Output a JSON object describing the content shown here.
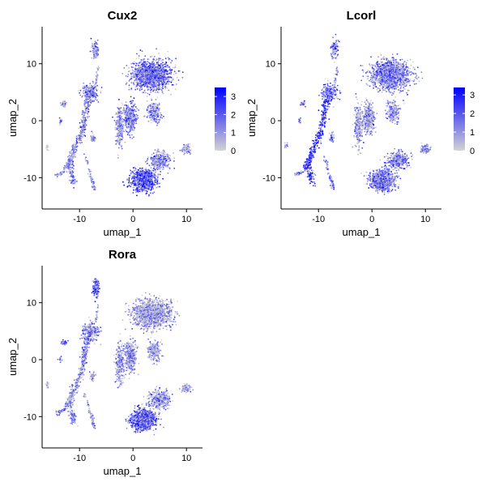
{
  "figure": {
    "low_color": "#d3d3d3",
    "high_color": "#0000ff",
    "point_color_note": "expression"
  },
  "chart_data": [
    {
      "type": "scatter",
      "title": "Cux2",
      "xlabel": "umap_1",
      "ylabel": "umap_2",
      "xlim": [
        -17,
        13
      ],
      "ylim": [
        -15.5,
        16.5
      ],
      "xticks": [
        -10,
        0,
        10
      ],
      "yticks": [
        -10,
        0,
        10
      ],
      "color_scale": {
        "min": 0,
        "max": 3.5,
        "ticks": [
          0,
          1,
          2,
          3
        ],
        "low": "#d3d3d3",
        "high": "#0000ff"
      },
      "clusters": [
        {
          "cx": 3.5,
          "cy": 8.0,
          "sx": 3.3,
          "sy": 2.2,
          "n": 1400,
          "mean": 1.9
        },
        {
          "cx": 2.0,
          "cy": -10.5,
          "sx": 2.0,
          "sy": 1.6,
          "n": 900,
          "mean": 2.2
        },
        {
          "cx": 5.0,
          "cy": -7.0,
          "sx": 1.8,
          "sy": 1.3,
          "n": 350,
          "mean": 1.3
        },
        {
          "cx": -0.5,
          "cy": 0.5,
          "sx": 1.0,
          "sy": 2.3,
          "n": 350,
          "mean": 1.7
        },
        {
          "cx": -2.5,
          "cy": -1.0,
          "sx": 0.7,
          "sy": 3.2,
          "n": 250,
          "mean": 1.2
        },
        {
          "cx": -7.0,
          "cy": 12.5,
          "sx": 0.6,
          "sy": 1.5,
          "n": 120,
          "mean": 1.3
        },
        {
          "cx": -8.0,
          "cy": 5.0,
          "sx": 1.4,
          "sy": 1.3,
          "n": 220,
          "mean": 1.6
        },
        {
          "cx": 4.0,
          "cy": 1.5,
          "sx": 1.2,
          "sy": 1.6,
          "n": 220,
          "mean": 1.3
        },
        {
          "cx": 10.0,
          "cy": -5.0,
          "sx": 0.8,
          "sy": 0.7,
          "n": 80,
          "mean": 0.8
        },
        {
          "cx": -13.0,
          "cy": 3.0,
          "sx": 0.5,
          "sy": 0.4,
          "n": 30,
          "mean": 1.2
        },
        {
          "cx": -13.5,
          "cy": 0.0,
          "sx": 0.3,
          "sy": 0.4,
          "n": 15,
          "mean": 2.0
        },
        {
          "cx": -7.5,
          "cy": -3.0,
          "sx": 0.4,
          "sy": 0.8,
          "n": 40,
          "mean": 1.0
        },
        {
          "cx": -16.0,
          "cy": -4.5,
          "sx": 0.3,
          "sy": 0.5,
          "n": 12,
          "mean": 0.2
        }
      ],
      "ribbons": [
        {
          "path": [
            [
              -11,
              -11
            ],
            [
              -12,
              -8
            ],
            [
              -11,
              -5
            ],
            [
              -9.5,
              -2
            ],
            [
              -9,
              1
            ],
            [
              -8.5,
              4
            ]
          ],
          "n": 380,
          "w": 0.7,
          "mean": 1.5
        },
        {
          "path": [
            [
              -14.5,
              -9.5
            ],
            [
              -13,
              -9
            ],
            [
              -12,
              -7
            ],
            [
              -11,
              -6
            ]
          ],
          "n": 80,
          "w": 0.4,
          "mean": 0.9
        },
        {
          "path": [
            [
              -9,
              -6
            ],
            [
              -7.8,
              -10
            ],
            [
              -7.2,
              -12
            ]
          ],
          "n": 60,
          "w": 0.35,
          "mean": 1.1
        },
        {
          "path": [
            [
              -6.5,
              9.5
            ],
            [
              -6.8,
              7.5
            ],
            [
              -7,
              6.5
            ]
          ],
          "n": 30,
          "w": 0.25,
          "mean": 0.8
        }
      ]
    },
    {
      "type": "scatter",
      "title": "Lcorl",
      "xlabel": "umap_1",
      "ylabel": "umap_2",
      "xlim": [
        -17,
        13
      ],
      "ylim": [
        -15.5,
        16.5
      ],
      "xticks": [
        -10,
        0,
        10
      ],
      "yticks": [
        -10,
        0,
        10
      ],
      "color_scale": {
        "min": 0,
        "max": 3.4,
        "ticks": [
          0,
          1,
          2,
          3
        ],
        "low": "#d3d3d3",
        "high": "#0000ff"
      },
      "clusters": [
        {
          "cx": 3.5,
          "cy": 8.0,
          "sx": 3.3,
          "sy": 2.2,
          "n": 1400,
          "mean": 1.5
        },
        {
          "cx": 2.0,
          "cy": -10.5,
          "sx": 2.0,
          "sy": 1.6,
          "n": 900,
          "mean": 1.6
        },
        {
          "cx": 5.0,
          "cy": -7.0,
          "sx": 1.8,
          "sy": 1.3,
          "n": 350,
          "mean": 1.4
        },
        {
          "cx": -0.5,
          "cy": 0.5,
          "sx": 1.0,
          "sy": 2.3,
          "n": 350,
          "mean": 1.2
        },
        {
          "cx": -2.5,
          "cy": -1.0,
          "sx": 0.7,
          "sy": 3.2,
          "n": 250,
          "mean": 1.0
        },
        {
          "cx": -7.0,
          "cy": 12.5,
          "sx": 0.6,
          "sy": 1.5,
          "n": 120,
          "mean": 1.3
        },
        {
          "cx": -8.0,
          "cy": 5.0,
          "sx": 1.4,
          "sy": 1.3,
          "n": 220,
          "mean": 1.7
        },
        {
          "cx": 4.0,
          "cy": 1.5,
          "sx": 1.2,
          "sy": 1.6,
          "n": 220,
          "mean": 1.2
        },
        {
          "cx": 10.0,
          "cy": -5.0,
          "sx": 0.8,
          "sy": 0.7,
          "n": 80,
          "mean": 1.4
        },
        {
          "cx": -13.0,
          "cy": 3.0,
          "sx": 0.5,
          "sy": 0.4,
          "n": 30,
          "mean": 1.3
        },
        {
          "cx": -13.5,
          "cy": 0.0,
          "sx": 0.3,
          "sy": 0.4,
          "n": 15,
          "mean": 1.4
        },
        {
          "cx": -7.5,
          "cy": -3.0,
          "sx": 0.4,
          "sy": 0.8,
          "n": 40,
          "mean": 1.3
        },
        {
          "cx": -16.0,
          "cy": -4.5,
          "sx": 0.3,
          "sy": 0.5,
          "n": 12,
          "mean": 1.0
        }
      ],
      "ribbons": [
        {
          "path": [
            [
              -11,
              -11
            ],
            [
              -12,
              -8
            ],
            [
              -11,
              -5
            ],
            [
              -9.5,
              -2
            ],
            [
              -9,
              1
            ],
            [
              -8.5,
              4
            ]
          ],
          "n": 380,
          "w": 0.75,
          "mean": 2.8
        },
        {
          "path": [
            [
              -14.5,
              -9.5
            ],
            [
              -13,
              -9
            ],
            [
              -12,
              -7
            ],
            [
              -11,
              -6
            ]
          ],
          "n": 80,
          "w": 0.4,
          "mean": 1.9
        },
        {
          "path": [
            [
              -9,
              -6
            ],
            [
              -7.8,
              -10
            ],
            [
              -7.2,
              -12
            ]
          ],
          "n": 60,
          "w": 0.35,
          "mean": 1.5
        },
        {
          "path": [
            [
              -6.5,
              9.5
            ],
            [
              -6.8,
              7.5
            ],
            [
              -7,
              6.5
            ]
          ],
          "n": 30,
          "w": 0.25,
          "mean": 1.2
        }
      ]
    },
    {
      "type": "scatter",
      "title": "Rora",
      "xlabel": "umap_1",
      "ylabel": "umap_2",
      "xlim": [
        -17,
        13
      ],
      "ylim": [
        -15.5,
        16.5
      ],
      "xticks": [
        -10,
        0,
        10
      ],
      "yticks": [
        -10,
        0,
        10
      ],
      "color_scale": {
        "min": 0,
        "max": 3.5,
        "ticks": [
          0,
          1,
          2,
          3
        ],
        "low": "#d3d3d3",
        "high": "#0000ff"
      },
      "clusters": [
        {
          "cx": 3.5,
          "cy": 8.0,
          "sx": 3.3,
          "sy": 2.2,
          "n": 1400,
          "mean": 0.9
        },
        {
          "cx": 2.0,
          "cy": -10.5,
          "sx": 2.0,
          "sy": 1.6,
          "n": 900,
          "mean": 2.1
        },
        {
          "cx": 5.0,
          "cy": -7.0,
          "sx": 1.8,
          "sy": 1.3,
          "n": 350,
          "mean": 1.2
        },
        {
          "cx": -0.5,
          "cy": 0.5,
          "sx": 1.0,
          "sy": 2.3,
          "n": 350,
          "mean": 1.3
        },
        {
          "cx": -2.5,
          "cy": -1.0,
          "sx": 0.7,
          "sy": 3.2,
          "n": 250,
          "mean": 1.1
        },
        {
          "cx": -7.0,
          "cy": 12.5,
          "sx": 0.6,
          "sy": 1.5,
          "n": 120,
          "mean": 2.3
        },
        {
          "cx": -8.0,
          "cy": 5.0,
          "sx": 1.4,
          "sy": 1.3,
          "n": 220,
          "mean": 1.6
        },
        {
          "cx": 4.0,
          "cy": 1.5,
          "sx": 1.2,
          "sy": 1.6,
          "n": 220,
          "mean": 1.0
        },
        {
          "cx": 10.0,
          "cy": -5.0,
          "sx": 0.8,
          "sy": 0.7,
          "n": 80,
          "mean": 0.8
        },
        {
          "cx": -13.0,
          "cy": 3.0,
          "sx": 0.5,
          "sy": 0.4,
          "n": 30,
          "mean": 1.8
        },
        {
          "cx": -13.5,
          "cy": 0.0,
          "sx": 0.3,
          "sy": 0.4,
          "n": 15,
          "mean": 1.5
        },
        {
          "cx": -7.5,
          "cy": -3.0,
          "sx": 0.4,
          "sy": 0.8,
          "n": 40,
          "mean": 1.4
        },
        {
          "cx": -16.0,
          "cy": -4.5,
          "sx": 0.3,
          "sy": 0.5,
          "n": 12,
          "mean": 0.6
        }
      ],
      "ribbons": [
        {
          "path": [
            [
              -11,
              -11
            ],
            [
              -12,
              -8
            ],
            [
              -11,
              -5
            ],
            [
              -9.5,
              -2
            ],
            [
              -9,
              1
            ],
            [
              -8.5,
              4
            ]
          ],
          "n": 380,
          "w": 0.7,
          "mean": 1.4
        },
        {
          "path": [
            [
              -14.5,
              -9.5
            ],
            [
              -13,
              -9
            ],
            [
              -12,
              -7
            ],
            [
              -11,
              -6
            ]
          ],
          "n": 80,
          "w": 0.4,
          "mean": 1.1
        },
        {
          "path": [
            [
              -9,
              -6
            ],
            [
              -7.8,
              -10
            ],
            [
              -7.2,
              -12
            ]
          ],
          "n": 60,
          "w": 0.35,
          "mean": 1.0
        },
        {
          "path": [
            [
              -6.5,
              9.5
            ],
            [
              -6.8,
              7.5
            ],
            [
              -7,
              6.5
            ]
          ],
          "n": 30,
          "w": 0.25,
          "mean": 1.0
        }
      ]
    }
  ]
}
